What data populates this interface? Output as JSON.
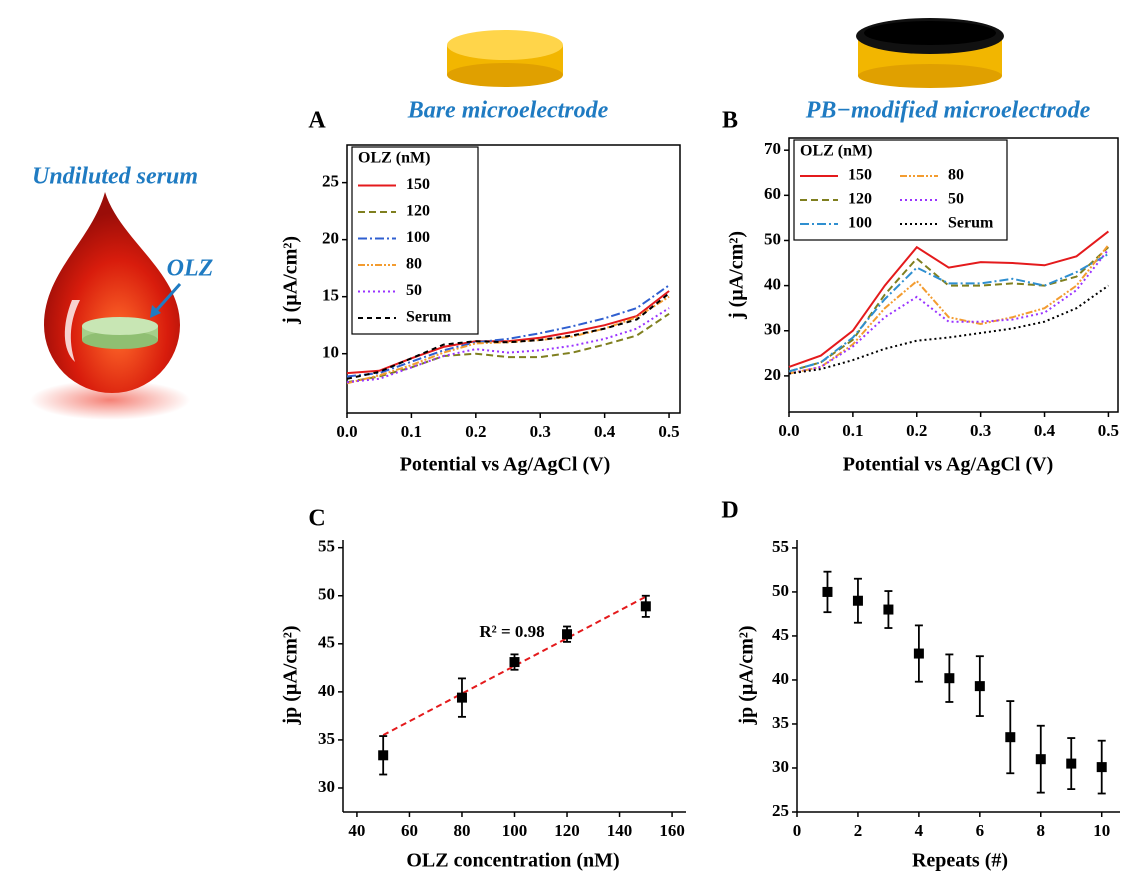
{
  "illustration": {
    "title": "Undiluted serum",
    "label": "OLZ"
  },
  "chart_data": [
    {
      "type": "line",
      "panel": "A",
      "title": "Bare microelectrode",
      "xlabel": "Potential vs Ag/AgCl (V)",
      "ylabel": "j (µA/cm²)",
      "legend_title": "OLZ (nM)",
      "legend_columns": 1,
      "frame": true,
      "x": [
        0,
        0.05,
        0.1,
        0.15,
        0.2,
        0.25,
        0.3,
        0.35,
        0.4,
        0.45,
        0.5
      ],
      "series": [
        {
          "name": "150",
          "color": "#e41a1c",
          "dash": "none",
          "values": [
            8.3,
            8.5,
            9.6,
            10.6,
            11.1,
            11.1,
            11.4,
            11.9,
            12.5,
            13.3,
            15.5
          ]
        },
        {
          "name": "120",
          "color": "#7f7f1f",
          "dash": "7,4",
          "values": [
            7.5,
            8.0,
            8.8,
            9.8,
            10.0,
            9.7,
            9.7,
            10.1,
            10.8,
            11.6,
            13.5
          ]
        },
        {
          "name": "100",
          "color": "#2f5fd0",
          "dash": "9,3,2,3",
          "values": [
            8.0,
            8.3,
            9.3,
            10.3,
            11.0,
            11.3,
            11.8,
            12.4,
            13.1,
            14.0,
            16.0
          ]
        },
        {
          "name": "80",
          "color": "#f39c30",
          "dash": "7,2,2,2,2,2",
          "values": [
            7.4,
            8.1,
            9.0,
            10.1,
            10.9,
            11.0,
            11.2,
            11.5,
            12.2,
            13.2,
            15.0
          ]
        },
        {
          "name": "50",
          "color": "#9933ff",
          "dash": "2,3",
          "values": [
            7.5,
            7.8,
            8.8,
            9.8,
            10.4,
            10.1,
            10.3,
            10.7,
            11.3,
            12.2,
            14.0
          ]
        },
        {
          "name": "Serum",
          "color": "#000000",
          "dash": "5,4",
          "values": [
            7.8,
            8.4,
            9.6,
            10.8,
            11.1,
            11.0,
            11.2,
            11.6,
            12.2,
            13.0,
            15.3
          ]
        }
      ],
      "xlim": [
        0,
        0.517
      ],
      "xticks": [
        {
          "value": 0,
          "label": "0.0"
        },
        0.1,
        0.2,
        0.3,
        0.4,
        0.5
      ],
      "ylim": [
        4.8,
        28.3
      ],
      "yticks": [
        10,
        15,
        20,
        25
      ]
    },
    {
      "type": "line",
      "panel": "B",
      "title": "PB−modified microelectrode",
      "xlabel": "Potential vs Ag/AgCl (V)",
      "ylabel": "j (µA/cm²)",
      "legend_title": "OLZ (nM)",
      "legend_columns": 2,
      "frame": true,
      "x": [
        0,
        0.05,
        0.1,
        0.15,
        0.2,
        0.25,
        0.3,
        0.35,
        0.4,
        0.45,
        0.5
      ],
      "series": [
        {
          "name": "150",
          "color": "#e41a1c",
          "dash": "none",
          "values": [
            22,
            24.5,
            30,
            40,
            48.5,
            44,
            45.2,
            45,
            44.5,
            46.5,
            52
          ]
        },
        {
          "name": "120",
          "color": "#7f7f1f",
          "dash": "7,4",
          "values": [
            21,
            23,
            28,
            38,
            46,
            40,
            40,
            40.5,
            40,
            42,
            48.5
          ]
        },
        {
          "name": "100",
          "color": "#2f8fd0",
          "dash": "9,3,2,3",
          "values": [
            21,
            23,
            28.5,
            37,
            44,
            40.5,
            40.5,
            41.5,
            40,
            43,
            47
          ]
        },
        {
          "name": "80",
          "color": "#f39c30",
          "dash": "7,2,2,2,2,2",
          "values": [
            20.5,
            22,
            27,
            35,
            41,
            33,
            31.5,
            33,
            35,
            40,
            49
          ]
        },
        {
          "name": "50",
          "color": "#9933ff",
          "dash": "2,3",
          "values": [
            20.5,
            22,
            26.5,
            33,
            37.5,
            32,
            32,
            32.5,
            34,
            39,
            48
          ]
        },
        {
          "name": "Serum",
          "color": "#000000",
          "dash": "2,3",
          "values": [
            20.5,
            21.5,
            23.5,
            26,
            27.8,
            28.5,
            29.5,
            30.5,
            32,
            35,
            40
          ]
        }
      ],
      "xlim": [
        0,
        0.515
      ],
      "xticks": [
        {
          "value": 0,
          "label": "0.0"
        },
        0.1,
        0.2,
        0.3,
        0.4,
        0.5
      ],
      "ylim": [
        12,
        72.7
      ],
      "yticks": [
        20,
        30,
        40,
        50,
        60,
        70
      ]
    },
    {
      "type": "scatter",
      "panel": "C",
      "xlabel": "OLZ concentration (nM)",
      "ylabel": "jp (µA/cm²)",
      "annotation": "R² = 0.98",
      "color": "#000000",
      "frame": false,
      "x": [
        50,
        80,
        100,
        120,
        150
      ],
      "values": [
        33.4,
        39.4,
        43.1,
        46.0,
        48.9
      ],
      "errors": [
        2.0,
        2.0,
        0.8,
        0.8,
        1.1
      ],
      "fit": {
        "x": [
          50,
          150
        ],
        "y": [
          35.5,
          49.9
        ],
        "color": "#e41a1c"
      },
      "xlim": [
        34.7,
        165.3
      ],
      "xticks": [
        40,
        60,
        80,
        100,
        120,
        140,
        160
      ],
      "ylim": [
        27.5,
        55.8
      ],
      "yticks": [
        30,
        35,
        40,
        45,
        50,
        55
      ]
    },
    {
      "type": "scatter",
      "panel": "D",
      "xlabel": "Repeats (#)",
      "ylabel": "jp (µA/cm²)",
      "color": "#000000",
      "frame": false,
      "x": [
        1,
        2,
        3,
        4,
        5,
        6,
        7,
        8,
        9,
        10
      ],
      "values": [
        50,
        49,
        48,
        43,
        40.2,
        39.3,
        33.5,
        31,
        30.5,
        30.1
      ],
      "errors": [
        2.3,
        2.5,
        2.1,
        3.2,
        2.7,
        3.4,
        4.1,
        3.8,
        2.9,
        3.0
      ],
      "xlim": [
        0,
        10.6
      ],
      "xticks": [
        0,
        2,
        4,
        6,
        8,
        10
      ],
      "ylim": [
        25,
        55.9
      ],
      "yticks": [
        25,
        30,
        35,
        40,
        45,
        50,
        55
      ]
    }
  ]
}
